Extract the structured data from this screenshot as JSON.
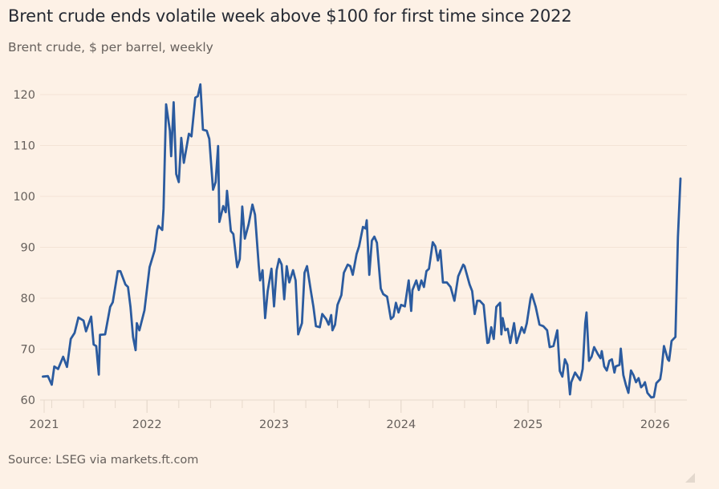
{
  "chart_data": {
    "type": "line",
    "title": "Brent crude ends volatile week above $100 for first time since 2022",
    "subtitle": "Brent crude, $ per barrel, weekly",
    "source": "Source: LSEG via markets.ft.com",
    "xlabel": "",
    "ylabel": "",
    "xlim": [
      2021.19,
      2026.2
    ],
    "ylim": [
      60,
      120
    ],
    "grid": true,
    "line_color": "#2b5b9f",
    "background": "#fdf1e6",
    "y_ticks": [
      60,
      70,
      80,
      90,
      100,
      110,
      120
    ],
    "y_tick_labels": [
      "60",
      "70",
      "80",
      "90",
      "100",
      "110",
      "120"
    ],
    "x_ticks": [
      2021.19,
      2022,
      2023,
      2024,
      2025,
      2026
    ],
    "x_tick_labels": [
      "2021",
      "2022",
      "2023",
      "2024",
      "2025",
      "2026"
    ],
    "series": [
      {
        "name": "Brent crude",
        "points": [
          [
            2021.18,
            64.6
          ],
          [
            2021.22,
            64.7
          ],
          [
            2021.25,
            63.0
          ],
          [
            2021.27,
            66.6
          ],
          [
            2021.3,
            66.1
          ],
          [
            2021.34,
            68.5
          ],
          [
            2021.37,
            66.5
          ],
          [
            2021.4,
            72.0
          ],
          [
            2021.43,
            73.2
          ],
          [
            2021.46,
            76.2
          ],
          [
            2021.5,
            75.6
          ],
          [
            2021.52,
            73.5
          ],
          [
            2021.56,
            76.4
          ],
          [
            2021.58,
            70.9
          ],
          [
            2021.6,
            70.6
          ],
          [
            2021.62,
            65.0
          ],
          [
            2021.63,
            72.8
          ],
          [
            2021.67,
            72.9
          ],
          [
            2021.71,
            78.3
          ],
          [
            2021.73,
            79.2
          ],
          [
            2021.77,
            85.3
          ],
          [
            2021.79,
            85.3
          ],
          [
            2021.83,
            82.7
          ],
          [
            2021.85,
            82.2
          ],
          [
            2021.87,
            78.3
          ],
          [
            2021.89,
            72.4
          ],
          [
            2021.91,
            69.8
          ],
          [
            2021.92,
            75.1
          ],
          [
            2021.94,
            73.7
          ],
          [
            2021.98,
            77.6
          ],
          [
            2022.02,
            86.1
          ],
          [
            2022.06,
            89.4
          ],
          [
            2022.08,
            93.4
          ],
          [
            2022.09,
            94.2
          ],
          [
            2022.12,
            93.4
          ],
          [
            2022.13,
            97.6
          ],
          [
            2022.15,
            118.1
          ],
          [
            2022.18,
            112.9
          ],
          [
            2022.19,
            107.9
          ],
          [
            2022.21,
            118.5
          ],
          [
            2022.23,
            104.4
          ],
          [
            2022.25,
            102.8
          ],
          [
            2022.27,
            111.5
          ],
          [
            2022.29,
            106.6
          ],
          [
            2022.33,
            112.3
          ],
          [
            2022.35,
            111.8
          ],
          [
            2022.38,
            119.4
          ],
          [
            2022.4,
            119.7
          ],
          [
            2022.42,
            122.0
          ],
          [
            2022.44,
            113.1
          ],
          [
            2022.47,
            112.9
          ],
          [
            2022.49,
            111.3
          ],
          [
            2022.52,
            101.3
          ],
          [
            2022.54,
            102.8
          ],
          [
            2022.56,
            109.9
          ],
          [
            2022.57,
            95.0
          ],
          [
            2022.6,
            98.1
          ],
          [
            2022.62,
            96.9
          ],
          [
            2022.63,
            101.1
          ],
          [
            2022.66,
            93.2
          ],
          [
            2022.68,
            92.6
          ],
          [
            2022.71,
            86.1
          ],
          [
            2022.73,
            87.7
          ],
          [
            2022.75,
            98.0
          ],
          [
            2022.77,
            91.7
          ],
          [
            2022.8,
            94.5
          ],
          [
            2022.83,
            98.4
          ],
          [
            2022.85,
            96.4
          ],
          [
            2022.88,
            86.3
          ],
          [
            2022.89,
            83.5
          ],
          [
            2022.91,
            85.5
          ],
          [
            2022.93,
            76.1
          ],
          [
            2022.95,
            81.4
          ],
          [
            2022.98,
            85.8
          ],
          [
            2023.0,
            78.4
          ],
          [
            2023.02,
            85.5
          ],
          [
            2023.04,
            87.7
          ],
          [
            2023.06,
            86.6
          ],
          [
            2023.08,
            79.8
          ],
          [
            2023.1,
            86.3
          ],
          [
            2023.12,
            83.1
          ],
          [
            2023.15,
            85.5
          ],
          [
            2023.17,
            83.5
          ],
          [
            2023.19,
            72.9
          ],
          [
            2023.22,
            75.1
          ],
          [
            2023.24,
            85.0
          ],
          [
            2023.26,
            86.3
          ],
          [
            2023.29,
            81.4
          ],
          [
            2023.31,
            78.3
          ],
          [
            2023.33,
            74.5
          ],
          [
            2023.36,
            74.3
          ],
          [
            2023.38,
            76.9
          ],
          [
            2023.41,
            75.9
          ],
          [
            2023.43,
            74.8
          ],
          [
            2023.45,
            76.7
          ],
          [
            2023.46,
            73.7
          ],
          [
            2023.48,
            74.8
          ],
          [
            2023.5,
            78.7
          ],
          [
            2023.53,
            80.6
          ],
          [
            2023.55,
            85.0
          ],
          [
            2023.58,
            86.6
          ],
          [
            2023.6,
            86.3
          ],
          [
            2023.62,
            84.6
          ],
          [
            2023.65,
            88.7
          ],
          [
            2023.67,
            90.2
          ],
          [
            2023.7,
            94.0
          ],
          [
            2023.72,
            93.7
          ],
          [
            2023.73,
            95.3
          ],
          [
            2023.75,
            84.6
          ],
          [
            2023.77,
            91.3
          ],
          [
            2023.79,
            92.1
          ],
          [
            2023.81,
            90.9
          ],
          [
            2023.84,
            81.9
          ],
          [
            2023.86,
            80.8
          ],
          [
            2023.89,
            80.3
          ],
          [
            2023.92,
            75.9
          ],
          [
            2023.94,
            76.4
          ],
          [
            2023.96,
            79.1
          ],
          [
            2023.98,
            77.2
          ],
          [
            2024.0,
            78.7
          ],
          [
            2024.03,
            78.4
          ],
          [
            2024.06,
            83.5
          ],
          [
            2024.08,
            77.5
          ],
          [
            2024.09,
            81.6
          ],
          [
            2024.12,
            83.5
          ],
          [
            2024.14,
            81.6
          ],
          [
            2024.16,
            83.5
          ],
          [
            2024.18,
            82.2
          ],
          [
            2024.2,
            85.3
          ],
          [
            2024.22,
            85.8
          ],
          [
            2024.25,
            91.0
          ],
          [
            2024.27,
            90.2
          ],
          [
            2024.29,
            87.4
          ],
          [
            2024.31,
            89.4
          ],
          [
            2024.33,
            83.1
          ],
          [
            2024.36,
            83.1
          ],
          [
            2024.39,
            82.2
          ],
          [
            2024.42,
            79.5
          ],
          [
            2024.45,
            84.3
          ],
          [
            2024.49,
            86.6
          ],
          [
            2024.5,
            86.3
          ],
          [
            2024.54,
            82.7
          ],
          [
            2024.56,
            81.4
          ],
          [
            2024.58,
            76.9
          ],
          [
            2024.6,
            79.5
          ],
          [
            2024.62,
            79.5
          ],
          [
            2024.65,
            78.7
          ],
          [
            2024.68,
            71.2
          ],
          [
            2024.69,
            71.3
          ],
          [
            2024.71,
            74.3
          ],
          [
            2024.73,
            72.0
          ],
          [
            2024.75,
            78.3
          ],
          [
            2024.78,
            79.1
          ],
          [
            2024.79,
            72.9
          ],
          [
            2024.8,
            76.1
          ],
          [
            2024.82,
            73.7
          ],
          [
            2024.84,
            74.0
          ],
          [
            2024.86,
            71.2
          ],
          [
            2024.89,
            75.1
          ],
          [
            2024.91,
            71.2
          ],
          [
            2024.95,
            74.3
          ],
          [
            2024.97,
            73.2
          ],
          [
            2024.99,
            75.1
          ],
          [
            2025.02,
            80.0
          ],
          [
            2025.03,
            80.8
          ],
          [
            2025.06,
            78.3
          ],
          [
            2025.09,
            74.8
          ],
          [
            2025.12,
            74.5
          ],
          [
            2025.15,
            73.7
          ],
          [
            2025.17,
            70.4
          ],
          [
            2025.2,
            70.6
          ],
          [
            2025.23,
            73.7
          ],
          [
            2025.25,
            65.7
          ],
          [
            2025.27,
            64.6
          ],
          [
            2025.29,
            68.0
          ],
          [
            2025.31,
            66.9
          ],
          [
            2025.33,
            61.1
          ],
          [
            2025.34,
            63.5
          ],
          [
            2025.37,
            65.4
          ],
          [
            2025.41,
            63.9
          ],
          [
            2025.43,
            66.1
          ],
          [
            2025.45,
            75.1
          ],
          [
            2025.46,
            77.2
          ],
          [
            2025.48,
            67.7
          ],
          [
            2025.5,
            68.5
          ],
          [
            2025.52,
            70.4
          ],
          [
            2025.55,
            69.0
          ],
          [
            2025.57,
            68.2
          ],
          [
            2025.58,
            69.6
          ],
          [
            2025.6,
            66.6
          ],
          [
            2025.62,
            65.8
          ],
          [
            2025.64,
            67.7
          ],
          [
            2025.66,
            68.0
          ],
          [
            2025.68,
            65.4
          ],
          [
            2025.69,
            66.6
          ],
          [
            2025.72,
            66.9
          ],
          [
            2025.73,
            70.1
          ],
          [
            2025.75,
            64.9
          ],
          [
            2025.77,
            63.0
          ],
          [
            2025.79,
            61.4
          ],
          [
            2025.81,
            65.8
          ],
          [
            2025.83,
            64.9
          ],
          [
            2025.85,
            63.5
          ],
          [
            2025.87,
            64.3
          ],
          [
            2025.89,
            62.5
          ],
          [
            2025.91,
            63.0
          ],
          [
            2025.92,
            63.5
          ],
          [
            2025.94,
            61.4
          ],
          [
            2025.97,
            60.5
          ],
          [
            2025.99,
            60.6
          ],
          [
            2026.01,
            63.3
          ],
          [
            2026.04,
            64.1
          ],
          [
            2026.05,
            65.7
          ],
          [
            2026.07,
            70.6
          ],
          [
            2026.1,
            68.0
          ],
          [
            2026.11,
            67.7
          ],
          [
            2026.13,
            71.6
          ],
          [
            2026.16,
            72.4
          ],
          [
            2026.18,
            92.0
          ],
          [
            2026.2,
            103.5
          ]
        ]
      }
    ]
  }
}
